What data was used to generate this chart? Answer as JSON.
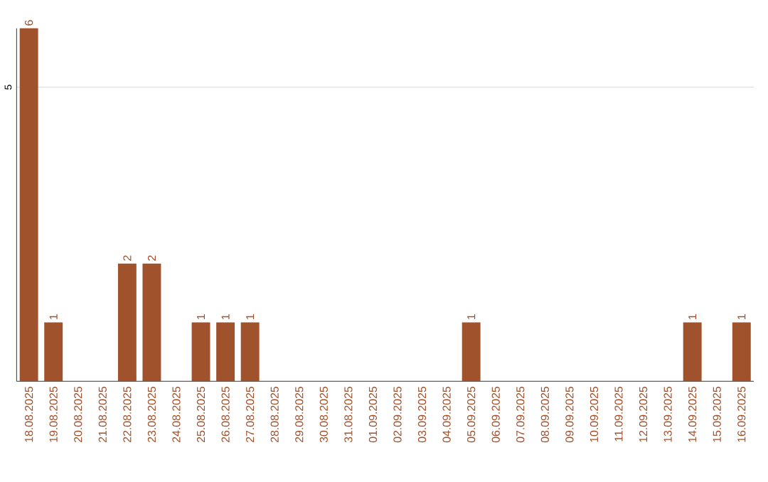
{
  "chart_data": {
    "type": "bar",
    "categories": [
      "18.08.2025",
      "19.08.2025",
      "20.08.2025",
      "21.08.2025",
      "22.08.2025",
      "23.08.2025",
      "24.08.2025",
      "25.08.2025",
      "26.08.2025",
      "27.08.2025",
      "28.08.2025",
      "29.08.2025",
      "30.08.2025",
      "31.08.2025",
      "01.09.2025",
      "02.09.2025",
      "03.09.2025",
      "04.09.2025",
      "05.09.2025",
      "06.09.2025",
      "07.09.2025",
      "08.09.2025",
      "09.09.2025",
      "10.09.2025",
      "11.09.2025",
      "12.09.2025",
      "13.09.2025",
      "14.09.2025",
      "15.09.2025",
      "16.09.2025"
    ],
    "values": [
      6,
      1,
      0,
      0,
      2,
      2,
      0,
      1,
      1,
      1,
      0,
      0,
      0,
      0,
      0,
      0,
      0,
      0,
      1,
      0,
      0,
      0,
      0,
      0,
      0,
      0,
      0,
      1,
      0,
      1
    ],
    "value_labels": [
      "6",
      "1",
      null,
      null,
      "2",
      "2",
      null,
      "1",
      "1",
      "1",
      null,
      null,
      null,
      null,
      null,
      null,
      null,
      null,
      "1",
      null,
      null,
      null,
      null,
      null,
      null,
      null,
      null,
      "1",
      null,
      "1"
    ],
    "color": "#a0522d",
    "ylim": [
      0,
      6
    ],
    "yticks": [
      5
    ],
    "grid": "y"
  }
}
